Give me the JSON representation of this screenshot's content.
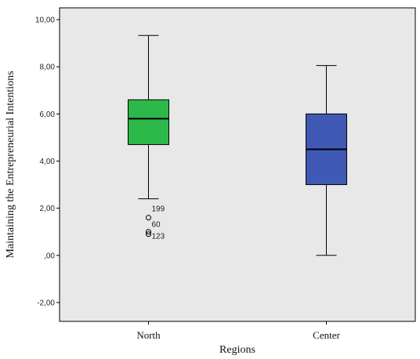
{
  "chart_data": {
    "type": "boxplot",
    "xlabel": "Regions",
    "ylabel": "Maintaining the Entrepreneurial Intentions",
    "ylim": [
      -2.8,
      10.5
    ],
    "yticks": [
      -2,
      0,
      2,
      4,
      6,
      8,
      10
    ],
    "ytick_labels": [
      "-2,00",
      ",00",
      "2,00",
      "4,00",
      "6,00",
      "8,00",
      "10,00"
    ],
    "categories": [
      "North",
      "Center"
    ],
    "boxes": [
      {
        "name": "North",
        "min": 2.4,
        "q1": 4.7,
        "median": 5.8,
        "q3": 6.6,
        "max": 9.33,
        "color": "#2db84a",
        "outliers": [
          {
            "value": 1.6,
            "label": "199"
          },
          {
            "value": 1.0,
            "label": "60"
          },
          {
            "value": 0.9,
            "label": "123"
          }
        ]
      },
      {
        "name": "Center",
        "min": 0.0,
        "q1": 3.0,
        "median": 4.5,
        "q3": 6.0,
        "max": 8.05,
        "color": "#3f59b5",
        "outliers": []
      }
    ],
    "grid": false,
    "background": "#e8e8e8"
  }
}
